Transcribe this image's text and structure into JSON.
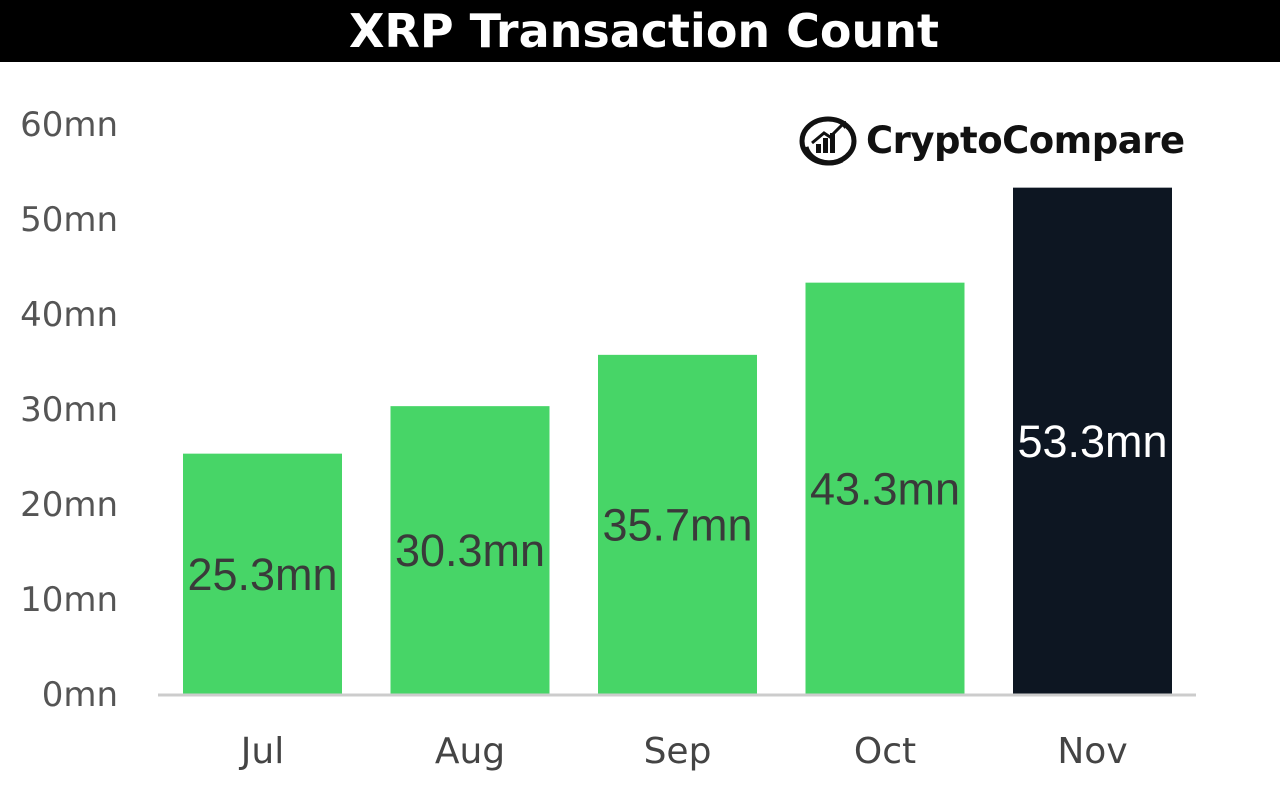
{
  "header": {
    "title": "XRP Transaction Count"
  },
  "brand": {
    "name": "CryptoCompare",
    "icon": "chart-circle-logo-icon"
  },
  "colors": {
    "bar": "#47d567",
    "highlight": "#0d1622",
    "axis": "#cccccc"
  },
  "chart_data": {
    "type": "bar",
    "title": "XRP Transaction Count",
    "xlabel": "",
    "ylabel": "",
    "categories": [
      "Jul",
      "Aug",
      "Sep",
      "Oct",
      "Nov"
    ],
    "values": [
      25.3,
      30.3,
      35.7,
      43.3,
      53.3
    ],
    "data_labels": [
      "25.3mn",
      "30.3mn",
      "35.7mn",
      "43.3mn",
      "53.3mn"
    ],
    "ylim": [
      0,
      60
    ],
    "yticks": [
      0,
      10,
      20,
      30,
      40,
      50,
      60
    ],
    "ytick_labels": [
      "0mn",
      "10mn",
      "20mn",
      "30mn",
      "40mn",
      "50mn",
      "60mn"
    ],
    "highlight_index": 4,
    "grid": false,
    "legend": "none"
  }
}
